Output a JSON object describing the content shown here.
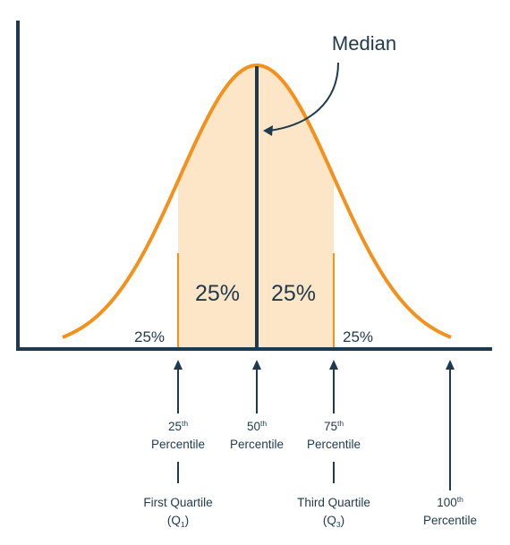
{
  "diagram": {
    "colors": {
      "axis": "#1f3a4d",
      "curve": "#f2911b",
      "fill": "#fde6c8",
      "text": "#1f3a4d"
    },
    "median_label": "Median",
    "regions": {
      "left_tail": "25%",
      "left_center": "25%",
      "right_center": "25%",
      "right_tail": "25%"
    },
    "markers": [
      {
        "number": "25",
        "suffix": "th",
        "word": "Percentile",
        "quartile": "First Quartile",
        "quartile_symbol": "Q",
        "quartile_sub": "1"
      },
      {
        "number": "50",
        "suffix": "th",
        "word": "Percentile"
      },
      {
        "number": "75",
        "suffix": "th",
        "word": "Percentile",
        "quartile": "Third Quartile",
        "quartile_symbol": "Q",
        "quartile_sub": "3"
      },
      {
        "number": "100",
        "suffix": "th",
        "word": "Percentile"
      }
    ]
  }
}
